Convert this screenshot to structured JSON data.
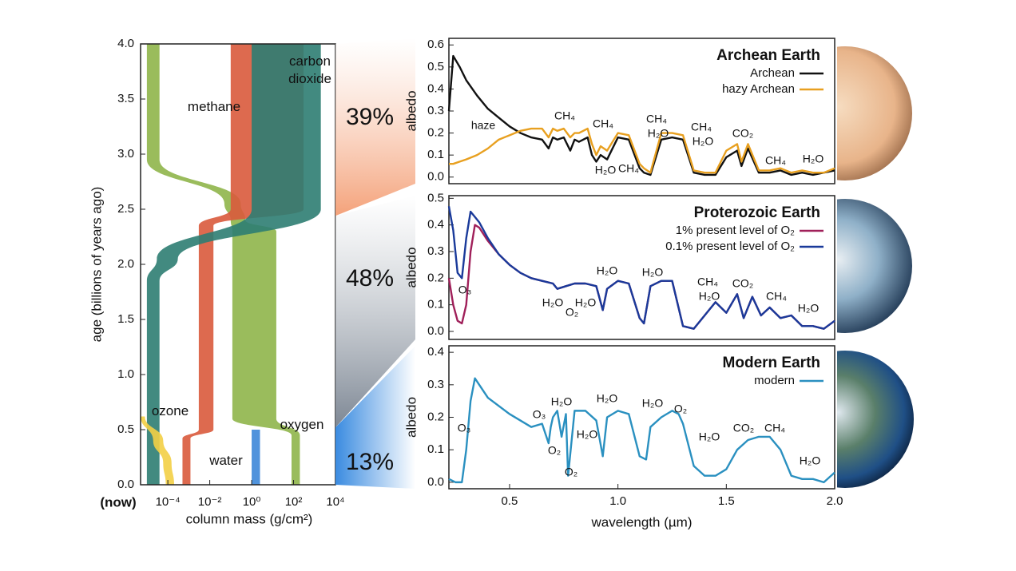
{
  "chart_data": [
    {
      "type": "band",
      "ylabel": "age (billions of years ago)",
      "xlabel": "column mass (g/cm²)",
      "now_label": "(now)",
      "log_x": true,
      "xlim": [
        5e-06,
        10000
      ],
      "ylim": [
        0,
        4
      ],
      "xticks": [
        {
          "value": 0.0001,
          "label": "10⁻⁴"
        },
        {
          "value": 0.01,
          "label": "10⁻²"
        },
        {
          "value": 1,
          "label": "10⁰"
        },
        {
          "value": 100,
          "label": "10²"
        },
        {
          "value": 10000,
          "label": "10⁴"
        }
      ],
      "yticks": [
        {
          "value": 0,
          "label": "0.0"
        },
        0.5,
        {
          "value": 1,
          "label": "1.0"
        },
        1.5,
        {
          "value": 2,
          "label": "2.0"
        },
        2.5,
        {
          "value": 3,
          "label": "3.0"
        },
        3.5,
        {
          "value": 4,
          "label": "4.0"
        }
      ],
      "series": [
        {
          "name": "oxygen",
          "color": "#8fb54a",
          "age": [
            4.0,
            2.95,
            2.55,
            2.4,
            2.3,
            0.6,
            0.45,
            0.0
          ],
          "low": [
            1e-05,
            1e-05,
            0.05,
            0.1,
            0.12,
            0.12,
            80,
            80
          ],
          "high": [
            4e-05,
            4e-05,
            0.3,
            0.5,
            15,
            15,
            200,
            200
          ]
        },
        {
          "name": "methane",
          "color": "#d95a3c",
          "age": [
            4.0,
            2.5,
            2.35,
            0.5,
            0.42,
            0.0
          ],
          "low": [
            0.1,
            0.1,
            0.003,
            0.003,
            0.0005,
            0.0005
          ],
          "high": [
            300,
            300,
            0.015,
            0.015,
            0.0012,
            0.0012
          ]
        },
        {
          "name": "carbon dioxide",
          "color": "#2d7d72",
          "age": [
            4.0,
            2.5,
            2.05,
            1.85,
            0.0
          ],
          "low": [
            1,
            1,
            3e-05,
            1e-05,
            1e-05
          ],
          "high": [
            2000,
            2000,
            0.0003,
            4e-05,
            4e-05
          ]
        },
        {
          "name": "ozone",
          "color": "#f3cf45",
          "age": [
            0.62,
            0.4,
            0.2,
            0.0
          ],
          "low": [
            5e-06,
            2e-05,
            6e-05,
            8e-05
          ],
          "high": [
            8e-06,
            6e-05,
            0.00015,
            0.0002
          ]
        },
        {
          "name": "water",
          "color": "#3d87d8",
          "age": [
            0.5,
            0.0
          ],
          "low": [
            1,
            1
          ],
          "high": [
            2.5,
            2.5
          ]
        }
      ]
    },
    {
      "type": "wedge",
      "values": [
        39,
        48,
        13
      ],
      "value_labels": [
        "39%",
        "48%",
        "13%"
      ],
      "colors": [
        "#f4a27a",
        "#7d8794",
        "#3a8be0"
      ],
      "label_colors": [
        "#a0461c",
        "#333333",
        "#2050b0"
      ]
    },
    {
      "type": "line",
      "title": "Archean Earth",
      "ylabel": "albedo",
      "legend": "upper right",
      "xlim": [
        0.22,
        2.0
      ],
      "ylim": [
        -0.03,
        0.63
      ],
      "yticks": [
        {
          "value": 0,
          "label": "0.0"
        },
        0.1,
        0.2,
        0.3,
        0.4,
        0.5,
        0.6
      ],
      "x": [
        0.22,
        0.24,
        0.27,
        0.3,
        0.35,
        0.4,
        0.45,
        0.5,
        0.55,
        0.6,
        0.65,
        0.68,
        0.7,
        0.72,
        0.75,
        0.78,
        0.8,
        0.82,
        0.86,
        0.88,
        0.9,
        0.92,
        0.95,
        1.0,
        1.05,
        1.1,
        1.12,
        1.15,
        1.2,
        1.25,
        1.3,
        1.35,
        1.4,
        1.45,
        1.5,
        1.55,
        1.57,
        1.6,
        1.65,
        1.7,
        1.75,
        1.8,
        1.85,
        1.9,
        1.95,
        2.0
      ],
      "series": [
        {
          "name": "Archean",
          "color": "#111111",
          "values": [
            0.3,
            0.55,
            0.5,
            0.44,
            0.37,
            0.31,
            0.27,
            0.23,
            0.2,
            0.18,
            0.17,
            0.13,
            0.18,
            0.17,
            0.18,
            0.12,
            0.17,
            0.16,
            0.18,
            0.1,
            0.07,
            0.1,
            0.08,
            0.18,
            0.17,
            0.04,
            0.02,
            0.01,
            0.17,
            0.18,
            0.17,
            0.02,
            0.01,
            0.01,
            0.09,
            0.12,
            0.05,
            0.13,
            0.02,
            0.02,
            0.03,
            0.01,
            0.02,
            0.01,
            0.02,
            0.03
          ]
        },
        {
          "name": "hazy Archean",
          "color": "#e8a020",
          "values": [
            0.06,
            0.06,
            0.07,
            0.08,
            0.1,
            0.13,
            0.17,
            0.19,
            0.21,
            0.22,
            0.22,
            0.18,
            0.22,
            0.21,
            0.22,
            0.18,
            0.2,
            0.2,
            0.22,
            0.15,
            0.1,
            0.14,
            0.12,
            0.2,
            0.19,
            0.06,
            0.04,
            0.02,
            0.2,
            0.2,
            0.19,
            0.03,
            0.02,
            0.02,
            0.12,
            0.15,
            0.07,
            0.15,
            0.03,
            0.03,
            0.04,
            0.02,
            0.03,
            0.02,
            0.02,
            0.04
          ]
        }
      ],
      "annotations": [
        "haze",
        "CH₄",
        "CH₄",
        "H₂O",
        "CH₄",
        "CH₄",
        "H₂O",
        "CH₄",
        "H₂O",
        "CO₂",
        "CH₄",
        "H₂O"
      ]
    },
    {
      "type": "line",
      "title": "Proterozoic Earth",
      "ylabel": "albedo",
      "legend": "upper right",
      "xlim": [
        0.22,
        2.0
      ],
      "ylim": [
        -0.03,
        0.51
      ],
      "yticks": [
        {
          "value": 0,
          "label": "0.0"
        },
        0.1,
        0.2,
        0.3,
        0.4,
        0.5
      ],
      "x": [
        0.22,
        0.24,
        0.26,
        0.28,
        0.3,
        0.32,
        0.34,
        0.36,
        0.4,
        0.45,
        0.5,
        0.55,
        0.6,
        0.65,
        0.7,
        0.72,
        0.76,
        0.8,
        0.85,
        0.9,
        0.93,
        0.95,
        1.0,
        1.05,
        1.1,
        1.12,
        1.15,
        1.2,
        1.25,
        1.3,
        1.35,
        1.4,
        1.45,
        1.5,
        1.55,
        1.58,
        1.62,
        1.66,
        1.7,
        1.75,
        1.8,
        1.85,
        1.9,
        1.95,
        2.0
      ],
      "series": [
        {
          "name": "1% present level of O₂",
          "color": "#a0205a",
          "values": [
            0.2,
            0.1,
            0.04,
            0.03,
            0.1,
            0.3,
            0.4,
            0.39,
            0.34,
            0.29,
            0.25,
            0.22,
            0.2,
            0.19,
            0.18,
            0.16,
            0.17,
            0.18,
            0.18,
            0.17,
            0.08,
            0.16,
            0.19,
            0.18,
            0.05,
            0.03,
            0.17,
            0.19,
            0.19,
            0.02,
            0.01,
            0.06,
            0.11,
            0.07,
            0.14,
            0.05,
            0.13,
            0.06,
            0.09,
            0.05,
            0.06,
            0.02,
            0.02,
            0.01,
            0.04
          ]
        },
        {
          "name": "0.1% present level of O₂",
          "color": "#1a3a9a",
          "values": [
            0.47,
            0.38,
            0.22,
            0.2,
            0.35,
            0.45,
            0.43,
            0.41,
            0.35,
            0.29,
            0.25,
            0.22,
            0.2,
            0.19,
            0.18,
            0.16,
            0.17,
            0.18,
            0.18,
            0.17,
            0.08,
            0.16,
            0.19,
            0.18,
            0.05,
            0.03,
            0.17,
            0.19,
            0.19,
            0.02,
            0.01,
            0.06,
            0.11,
            0.07,
            0.14,
            0.05,
            0.13,
            0.06,
            0.09,
            0.05,
            0.06,
            0.02,
            0.02,
            0.01,
            0.04
          ]
        }
      ],
      "annotations": [
        "O₃",
        "H₂O",
        "O₂",
        "H₂O",
        "H₂O",
        "H₂O",
        "CH₄",
        "H₂O",
        "CO₂",
        "CH₄",
        "H₂O"
      ]
    },
    {
      "type": "line",
      "title": "Modern Earth",
      "ylabel": "albedo",
      "xlabel": "wavelength (µm)",
      "legend": "upper right",
      "xlim": [
        0.22,
        2.0
      ],
      "ylim": [
        -0.02,
        0.42
      ],
      "yticks": [
        {
          "value": 0,
          "label": "0.0"
        },
        0.1,
        0.2,
        0.3,
        0.4
      ],
      "xticks": [
        0.5,
        {
          "value": 1,
          "label": "1.0"
        },
        1.5,
        {
          "value": 2,
          "label": "2.0"
        }
      ],
      "x": [
        0.22,
        0.25,
        0.28,
        0.3,
        0.32,
        0.34,
        0.4,
        0.5,
        0.6,
        0.65,
        0.68,
        0.69,
        0.7,
        0.72,
        0.74,
        0.76,
        0.77,
        0.8,
        0.85,
        0.9,
        0.93,
        0.95,
        1.0,
        1.05,
        1.1,
        1.13,
        1.15,
        1.2,
        1.25,
        1.28,
        1.3,
        1.35,
        1.4,
        1.45,
        1.5,
        1.55,
        1.6,
        1.65,
        1.7,
        1.75,
        1.8,
        1.85,
        1.9,
        1.95,
        2.0
      ],
      "series": [
        {
          "name": "modern",
          "color": "#2a90c0",
          "values": [
            0.01,
            0.0,
            0.0,
            0.1,
            0.25,
            0.32,
            0.26,
            0.21,
            0.17,
            0.18,
            0.12,
            0.17,
            0.2,
            0.22,
            0.14,
            0.21,
            0.02,
            0.22,
            0.22,
            0.19,
            0.08,
            0.2,
            0.22,
            0.21,
            0.08,
            0.07,
            0.17,
            0.2,
            0.22,
            0.21,
            0.18,
            0.05,
            0.02,
            0.02,
            0.04,
            0.1,
            0.13,
            0.14,
            0.14,
            0.1,
            0.02,
            0.01,
            0.01,
            0.0,
            0.03
          ]
        }
      ],
      "annotations": [
        "O₃",
        "O₃",
        "H₂O",
        "H₂O",
        "O₂",
        "O₂",
        "H₂O",
        "H₂O",
        "O₂",
        "H₂O",
        "CO₂",
        "CH₄",
        "H₂O"
      ]
    }
  ]
}
